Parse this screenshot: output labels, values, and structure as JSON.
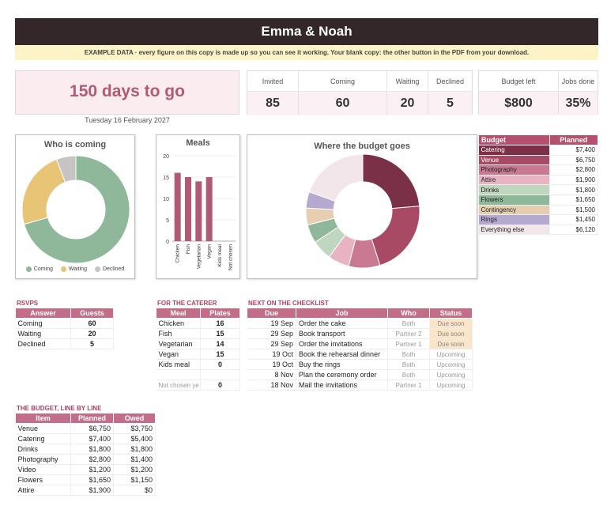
{
  "header": {
    "title": "Emma & Noah",
    "notice": "EXAMPLE DATA · every figure on this copy is made up so you can see it working. Your blank copy: the other button in the PDF from your download."
  },
  "countdown": {
    "text": "150 days to go",
    "date": "Tuesday 16 February 2027"
  },
  "kpis": {
    "invited": {
      "label": "Invited",
      "value": "85"
    },
    "coming": {
      "label": "Coming",
      "value": "60"
    },
    "waiting": {
      "label": "Waiting",
      "value": "20"
    },
    "declined": {
      "label": "Declined",
      "value": "5"
    },
    "budget_left": {
      "label": "Budget left",
      "value": "$800"
    },
    "jobs_done": {
      "label": "Jobs done",
      "value": "35%"
    }
  },
  "chart_data": [
    {
      "type": "pie",
      "title": "Who is coming",
      "categories": [
        "Coming",
        "Waiting",
        "Declined"
      ],
      "values": [
        60,
        20,
        5
      ],
      "colors": [
        "#8fb89a",
        "#e8c476",
        "#c9c4c4"
      ],
      "legend": "bottom"
    },
    {
      "type": "bar",
      "title": "Meals",
      "categories": [
        "Chicken",
        "Fish",
        "Vegetarian",
        "Vegan",
        "Kids meal",
        "Not chosen"
      ],
      "values": [
        16,
        15,
        14,
        15,
        0,
        0
      ],
      "ylim": [
        0,
        20
      ],
      "yticks": [
        0,
        5,
        10,
        15,
        20
      ],
      "color": "#b05a76",
      "grid": true
    },
    {
      "type": "pie",
      "title": "Where the budget goes",
      "categories": [
        "Catering",
        "Venue",
        "Photography",
        "Attire",
        "Drinks",
        "Flowers",
        "Contingency",
        "Rings",
        "Everything else"
      ],
      "values": [
        7400,
        6750,
        2800,
        1900,
        1800,
        1650,
        1500,
        1450,
        6120
      ],
      "colors": [
        "#7a3148",
        "#a84a64",
        "#c97a92",
        "#e8b4c4",
        "#bfd6bf",
        "#8fb89a",
        "#e6cfb0",
        "#b6a9cf",
        "#f2e6ea"
      ]
    }
  ],
  "budget_legend": {
    "header": {
      "item": "Budget",
      "amount": "Planned"
    },
    "rows": [
      {
        "label": "Catering",
        "amount": "$7,400",
        "bg": "#7a3148",
        "fg": "#ffffff"
      },
      {
        "label": "Venue",
        "amount": "$6,750",
        "bg": "#a84a64",
        "fg": "#ffffff"
      },
      {
        "label": "Photography",
        "amount": "$2,800",
        "bg": "#c97a92",
        "fg": "#222222"
      },
      {
        "label": "Attire",
        "amount": "$1,900",
        "bg": "#e8b4c4",
        "fg": "#222222"
      },
      {
        "label": "Drinks",
        "amount": "$1,800",
        "bg": "#bfd6bf",
        "fg": "#222222"
      },
      {
        "label": "Flowers",
        "amount": "$1,650",
        "bg": "#8fb89a",
        "fg": "#222222"
      },
      {
        "label": "Contingency",
        "amount": "$1,500",
        "bg": "#e6cfb0",
        "fg": "#222222"
      },
      {
        "label": "Rings",
        "amount": "$1,450",
        "bg": "#b6a9cf",
        "fg": "#222222"
      },
      {
        "label": "Everything else",
        "amount": "$6,120",
        "bg": "#f2e6ea",
        "fg": "#222222"
      }
    ]
  },
  "rsvps": {
    "title": "RSVPS",
    "headers": [
      "Answer",
      "Guests"
    ],
    "rows": [
      [
        "Coming",
        "60"
      ],
      [
        "Waiting",
        "20"
      ],
      [
        "Declined",
        "5"
      ]
    ]
  },
  "caterer": {
    "title": "FOR THE CATERER",
    "headers": [
      "Meal",
      "Plates"
    ],
    "rows": [
      [
        "Chicken",
        "16"
      ],
      [
        "Fish",
        "15"
      ],
      [
        "Vegetarian",
        "14"
      ],
      [
        "Vegan",
        "15"
      ],
      [
        "Kids meal",
        "0"
      ],
      [
        "",
        ""
      ],
      [
        "Not chosen ye",
        "0"
      ]
    ]
  },
  "checklist": {
    "title": "NEXT ON THE CHECKLIST",
    "headers": [
      "Due",
      "Job",
      "Who",
      "Status"
    ],
    "rows": [
      [
        "19 Sep",
        "Order the cake",
        "Both",
        "Due soon"
      ],
      [
        "29 Sep",
        "Book transport",
        "Partner 2",
        "Due soon"
      ],
      [
        "29 Sep",
        "Order the invitations",
        "Partner 1",
        "Due soon"
      ],
      [
        "19 Oct",
        "Book the rehearsal dinner",
        "Both",
        "Upcoming"
      ],
      [
        "19 Oct",
        "Buy the rings",
        "Both",
        "Upcoming"
      ],
      [
        "8 Nov",
        "Plan the ceremony order",
        "Both",
        "Upcoming"
      ],
      [
        "18 Nov",
        "Mail the invitations",
        "Partner 1",
        "Upcoming"
      ]
    ]
  },
  "budget_lines": {
    "title": "THE BUDGET, LINE BY LINE",
    "headers": [
      "Item",
      "Planned",
      "Owed"
    ],
    "rows": [
      [
        "Venue",
        "$6,750",
        "$3,750"
      ],
      [
        "Catering",
        "$7,400",
        "$5,400"
      ],
      [
        "Drinks",
        "$1,800",
        "$1,800"
      ],
      [
        "Photography",
        "$2,800",
        "$1,400"
      ],
      [
        "Video",
        "$1,200",
        "$1,200"
      ],
      [
        "Flowers",
        "$1,650",
        "$1,150"
      ],
      [
        "Attire",
        "$1,900",
        "$0"
      ]
    ]
  }
}
